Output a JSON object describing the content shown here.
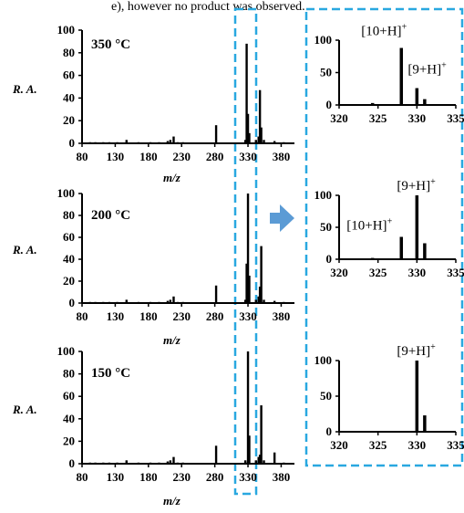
{
  "header_fragment": "e), however no product was observed.",
  "accent_color": "#29a8e0",
  "arrow_color": "#5b9bd5",
  "chart_data": [
    {
      "id": "main-350",
      "type": "bar",
      "annotation": "350 °C",
      "ylabel": "R. A.",
      "xlabel": "m/z",
      "show_xlabel": true,
      "xlim": [
        80,
        400
      ],
      "ylim": [
        0,
        100
      ],
      "yticks": [
        0,
        20,
        40,
        60,
        80,
        100
      ],
      "xticks": [
        80,
        130,
        180,
        230,
        280,
        330,
        380
      ],
      "x": [
        92,
        100,
        112,
        121,
        133,
        147,
        165,
        183,
        196,
        209,
        213,
        218,
        224,
        232,
        282,
        326,
        328,
        330,
        332,
        342,
        346,
        348,
        350,
        354,
        370,
        384
      ],
      "y": [
        1,
        1,
        1,
        1,
        1,
        3,
        1,
        1,
        1,
        2,
        3,
        6,
        1,
        1,
        16,
        3,
        88,
        26,
        9,
        3,
        6,
        47,
        14,
        3,
        2,
        1
      ]
    },
    {
      "id": "main-200",
      "type": "bar",
      "annotation": "200 °C",
      "ylabel": "R. A.",
      "xlabel": "m/z",
      "show_xlabel": true,
      "xlim": [
        80,
        400
      ],
      "ylim": [
        0,
        100
      ],
      "yticks": [
        0,
        20,
        40,
        60,
        80,
        100
      ],
      "xticks": [
        80,
        130,
        180,
        230,
        280,
        330,
        380
      ],
      "x": [
        92,
        100,
        112,
        121,
        133,
        147,
        165,
        183,
        196,
        209,
        213,
        218,
        224,
        232,
        282,
        326,
        328,
        330,
        332,
        342,
        346,
        348,
        350,
        354,
        370,
        384
      ],
      "y": [
        1,
        1,
        1,
        1,
        1,
        3,
        1,
        1,
        1,
        2,
        3,
        6,
        1,
        1,
        16,
        3,
        36,
        100,
        25,
        3,
        6,
        15,
        52,
        3,
        2,
        1
      ]
    },
    {
      "id": "main-150",
      "type": "bar",
      "annotation": "150 °C",
      "ylabel": "R. A.",
      "xlabel": "m/z",
      "show_xlabel": true,
      "xlim": [
        80,
        400
      ],
      "ylim": [
        0,
        100
      ],
      "yticks": [
        0,
        20,
        40,
        60,
        80,
        100
      ],
      "xticks": [
        80,
        130,
        180,
        230,
        280,
        330,
        380
      ],
      "x": [
        92,
        100,
        112,
        121,
        133,
        147,
        165,
        183,
        196,
        209,
        213,
        218,
        224,
        232,
        282,
        326,
        328,
        330,
        332,
        342,
        346,
        348,
        350,
        354,
        370,
        384
      ],
      "y": [
        1,
        1,
        1,
        1,
        1,
        3,
        1,
        1,
        1,
        2,
        3,
        6,
        1,
        1,
        16,
        3,
        1,
        100,
        25,
        3,
        6,
        8,
        52,
        3,
        10,
        1
      ]
    },
    {
      "id": "zoom-350",
      "type": "bar",
      "xlim": [
        320,
        335
      ],
      "ylim": [
        0,
        100
      ],
      "yticks": [
        0,
        50,
        100
      ],
      "xticks": [
        320,
        325,
        330,
        335
      ],
      "x": [
        322,
        324.3,
        328,
        330,
        331
      ],
      "y": [
        1,
        3,
        88,
        26,
        9
      ],
      "peak_labels": [
        {
          "text": "[10+H]",
          "sup": "+",
          "x": 328,
          "y": 88
        },
        {
          "text": "[9+H]",
          "sup": "+",
          "x": 330,
          "y": 26
        }
      ]
    },
    {
      "id": "zoom-200",
      "type": "bar",
      "xlim": [
        320,
        335
      ],
      "ylim": [
        0,
        100
      ],
      "yticks": [
        0,
        50,
        100
      ],
      "xticks": [
        320,
        325,
        330,
        335
      ],
      "x": [
        322,
        324.3,
        328,
        330,
        331
      ],
      "y": [
        1,
        2,
        35,
        100,
        25
      ],
      "peak_labels": [
        {
          "text": "[9+H]",
          "sup": "+",
          "x": 330,
          "y": 100
        },
        {
          "text": "[10+H]",
          "sup": "+",
          "x": 328,
          "y": 35
        }
      ]
    },
    {
      "id": "zoom-150",
      "type": "bar",
      "xlim": [
        320,
        335
      ],
      "ylim": [
        0,
        100
      ],
      "yticks": [
        0,
        50,
        100
      ],
      "xticks": [
        320,
        325,
        330,
        335
      ],
      "x": [
        320.5,
        321.5,
        322.5,
        323.5,
        324.5,
        326,
        327,
        328,
        330,
        331
      ],
      "y": [
        1,
        1,
        1,
        1,
        1,
        1,
        1,
        1,
        100,
        23
      ],
      "peak_labels": [
        {
          "text": "[9+H]",
          "sup": "+",
          "x": 330,
          "y": 100
        }
      ]
    }
  ]
}
